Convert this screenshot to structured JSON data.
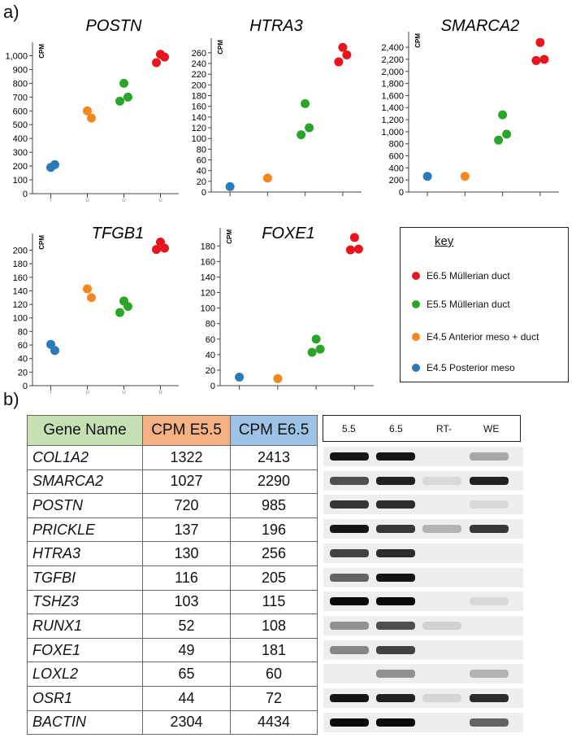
{
  "figure": {
    "panel_a_label": "a)",
    "panel_b_label": "b)"
  },
  "colors": {
    "e65": "#e8151e",
    "e55": "#2aa52a",
    "e45a": "#f5871f",
    "e45p": "#2a7ab8"
  },
  "legend": {
    "title": "key",
    "items": [
      {
        "label": "E6.5 Müllerian duct",
        "color": "#e8151e"
      },
      {
        "label": "E5.5 Müllerian duct",
        "color": "#2aa52a"
      },
      {
        "label": "E4.5 Anterior meso + duct",
        "color": "#f5871f"
      },
      {
        "label": "E4.5 Posterior meso",
        "color": "#2a7ab8"
      }
    ]
  },
  "chart_data": [
    {
      "type": "scatter",
      "title": "POSTN",
      "ylabel": "CPM",
      "ylim": [
        0,
        1050
      ],
      "yticks": [
        "0",
        "100",
        "200",
        "300",
        "400",
        "500",
        "600",
        "700",
        "800",
        "900",
        "1,000"
      ],
      "ytick_values": [
        0,
        100,
        200,
        300,
        400,
        500,
        600,
        700,
        800,
        900,
        1000
      ],
      "xticklabels": [
        "T",
        "U",
        "U",
        "U"
      ],
      "series": [
        {
          "color": "#2a7ab8",
          "x": 1,
          "y": [
            190,
            210
          ]
        },
        {
          "color": "#f5871f",
          "x": 2,
          "y": [
            600,
            548
          ]
        },
        {
          "color": "#2aa52a",
          "x": 3,
          "y": [
            800,
            700,
            670
          ]
        },
        {
          "color": "#e8151e",
          "x": 4,
          "y": [
            1010,
            990,
            950
          ]
        }
      ]
    },
    {
      "type": "scatter",
      "title": "HTRA3",
      "ylabel": "CPM",
      "ylim": [
        0,
        275
      ],
      "yticks": [
        "0",
        "20",
        "40",
        "60",
        "80",
        "100",
        "120",
        "140",
        "160",
        "180",
        "200",
        "220",
        "240",
        "260"
      ],
      "ytick_values": [
        0,
        20,
        40,
        60,
        80,
        100,
        120,
        140,
        160,
        180,
        200,
        220,
        240,
        260
      ],
      "xticklabels": [],
      "series": [
        {
          "color": "#2a7ab8",
          "x": 1,
          "y": [
            10
          ]
        },
        {
          "color": "#f5871f",
          "x": 2,
          "y": [
            26
          ]
        },
        {
          "color": "#2aa52a",
          "x": 3,
          "y": [
            165,
            120,
            107
          ]
        },
        {
          "color": "#e8151e",
          "x": 4,
          "y": [
            270,
            256,
            243
          ]
        }
      ]
    },
    {
      "type": "scatter",
      "title": "SMARCA2",
      "ylabel": "CPM",
      "ylim": [
        0,
        2550
      ],
      "yticks": [
        "0",
        "200",
        "400",
        "600",
        "800",
        "1,000",
        "1,200",
        "1,400",
        "1,600",
        "1,800",
        "2,000",
        "2,200",
        "2,400"
      ],
      "ytick_values": [
        0,
        200,
        400,
        600,
        800,
        1000,
        1200,
        1400,
        1600,
        1800,
        2000,
        2200,
        2400
      ],
      "xticklabels": [],
      "series": [
        {
          "color": "#2a7ab8",
          "x": 1,
          "y": [
            260
          ]
        },
        {
          "color": "#f5871f",
          "x": 2,
          "y": [
            260
          ]
        },
        {
          "color": "#2aa52a",
          "x": 3,
          "y": [
            1280,
            960,
            860
          ]
        },
        {
          "color": "#e8151e",
          "x": 4,
          "y": [
            2480,
            2200,
            2180
          ]
        }
      ]
    },
    {
      "type": "scatter",
      "title": "TFGB1",
      "ylabel": "CPM",
      "ylim": [
        0,
        215
      ],
      "yticks": [
        "0",
        "20",
        "40",
        "60",
        "80",
        "100",
        "120",
        "140",
        "160",
        "180",
        "200"
      ],
      "ytick_values": [
        0,
        20,
        40,
        60,
        80,
        100,
        120,
        140,
        160,
        180,
        200
      ],
      "xticklabels": [
        "T",
        "U",
        "U",
        "U"
      ],
      "series": [
        {
          "color": "#2a7ab8",
          "x": 1,
          "y": [
            61,
            52
          ]
        },
        {
          "color": "#f5871f",
          "x": 2,
          "y": [
            143,
            130
          ]
        },
        {
          "color": "#2aa52a",
          "x": 3,
          "y": [
            125,
            117,
            108
          ]
        },
        {
          "color": "#e8151e",
          "x": 4,
          "y": [
            212,
            203,
            201
          ]
        }
      ]
    },
    {
      "type": "scatter",
      "title": "FOXE1",
      "ylabel": "CPM",
      "ylim": [
        0,
        195
      ],
      "yticks": [
        "0",
        "20",
        "40",
        "60",
        "80",
        "100",
        "120",
        "140",
        "160",
        "180"
      ],
      "ytick_values": [
        0,
        20,
        40,
        60,
        80,
        100,
        120,
        140,
        160,
        180
      ],
      "xticklabels": [],
      "series": [
        {
          "color": "#2a7ab8",
          "x": 1,
          "y": [
            11
          ]
        },
        {
          "color": "#f5871f",
          "x": 2,
          "y": [
            9
          ]
        },
        {
          "color": "#2aa52a",
          "x": 3,
          "y": [
            60,
            47,
            43
          ]
        },
        {
          "color": "#e8151e",
          "x": 4,
          "y": [
            191,
            176,
            175
          ]
        }
      ]
    }
  ],
  "table": {
    "headers": [
      "Gene Name",
      "CPM E5.5",
      "CPM E6.5"
    ],
    "header_colors": [
      "#c6e0b4",
      "#f4b183",
      "#9dc3e6"
    ],
    "rows": [
      {
        "gene": "COL1A2",
        "e55": "1322",
        "e65": "2413"
      },
      {
        "gene": "SMARCA2",
        "e55": "1027",
        "e65": "2290"
      },
      {
        "gene": "POSTN",
        "e55": "720",
        "e65": "985"
      },
      {
        "gene": "PRICKLE",
        "e55": "137",
        "e65": "196"
      },
      {
        "gene": "HTRA3",
        "e55": "130",
        "e65": "256"
      },
      {
        "gene": "TGFBI",
        "e55": "116",
        "e65": "205"
      },
      {
        "gene": "TSHZ3",
        "e55": "103",
        "e65": "115"
      },
      {
        "gene": "RUNX1",
        "e55": "52",
        "e65": "108"
      },
      {
        "gene": "FOXE1",
        "e55": "49",
        "e65": "181"
      },
      {
        "gene": "LOXL2",
        "e55": "65",
        "e65": "60"
      },
      {
        "gene": "OSR1",
        "e55": "44",
        "e65": "72"
      },
      {
        "gene": "BACTIN",
        "e55": "2304",
        "e65": "4434"
      }
    ]
  },
  "gel": {
    "lanes": [
      "5.5",
      "6.5",
      "RT-",
      "WE"
    ],
    "band_intensity": [
      [
        0.95,
        0.95,
        0.0,
        0.3
      ],
      [
        0.7,
        0.9,
        0.08,
        0.9
      ],
      [
        0.8,
        0.85,
        0.0,
        0.08
      ],
      [
        0.95,
        0.8,
        0.25,
        0.8
      ],
      [
        0.75,
        0.85,
        0.0,
        0.0
      ],
      [
        0.6,
        0.95,
        0.0,
        0.0
      ],
      [
        1.0,
        1.0,
        0.0,
        0.08
      ],
      [
        0.4,
        0.7,
        0.12,
        0.0
      ],
      [
        0.45,
        0.75,
        0.0,
        0.0
      ],
      [
        0.0,
        0.4,
        0.0,
        0.25
      ],
      [
        0.95,
        0.9,
        0.1,
        0.85
      ],
      [
        1.0,
        1.0,
        0.0,
        0.6
      ]
    ]
  }
}
